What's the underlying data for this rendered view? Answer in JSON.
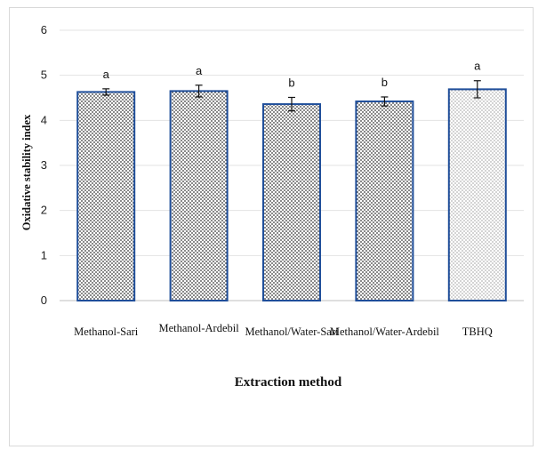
{
  "chart_data": {
    "type": "bar",
    "title": "",
    "xlabel": "Extraction method",
    "ylabel": "Oxidative stability index",
    "ylim": [
      0,
      6
    ],
    "yticks": [
      0,
      1,
      2,
      3,
      4,
      5,
      6
    ],
    "grid": true,
    "categories": [
      "Methanol-Sari",
      "Methanol-Ardebil",
      "Methanol/Water-Sari",
      "Methanol/Water-Ardebil",
      "TBHQ"
    ],
    "values": [
      4.63,
      4.65,
      4.36,
      4.42,
      4.69
    ],
    "errors": [
      0.07,
      0.13,
      0.15,
      0.1,
      0.19
    ],
    "significance_letters": [
      "a",
      "a",
      "b",
      "b",
      "a"
    ],
    "colors": {
      "bar_border": "#1f4e9a",
      "bar_dots": "#2a2a2a",
      "tbhq_dots": "#555555",
      "grid": "#e3e3e3",
      "axis": "#bfbfbf"
    }
  }
}
